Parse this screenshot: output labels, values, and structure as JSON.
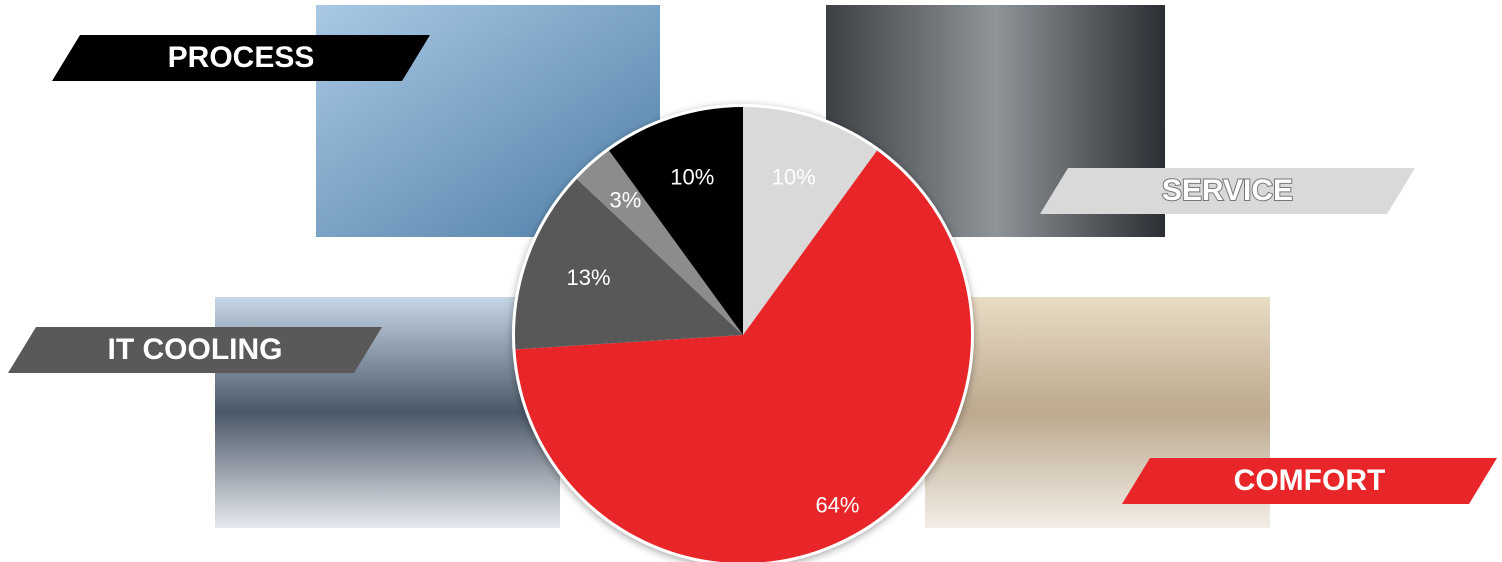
{
  "chart_data": {
    "type": "pie",
    "categories": [
      "SERVICE",
      "COMFORT",
      "IT COOLING",
      null,
      "PROCESS"
    ],
    "values": [
      10,
      64,
      13,
      3,
      10
    ],
    "value_labels": [
      "10%",
      "64%",
      "13%",
      "3%",
      "10%"
    ],
    "colors": [
      "#d9d9d9",
      "#e8262a",
      "#595959",
      "#8c8c8c",
      "#000000"
    ]
  }
}
